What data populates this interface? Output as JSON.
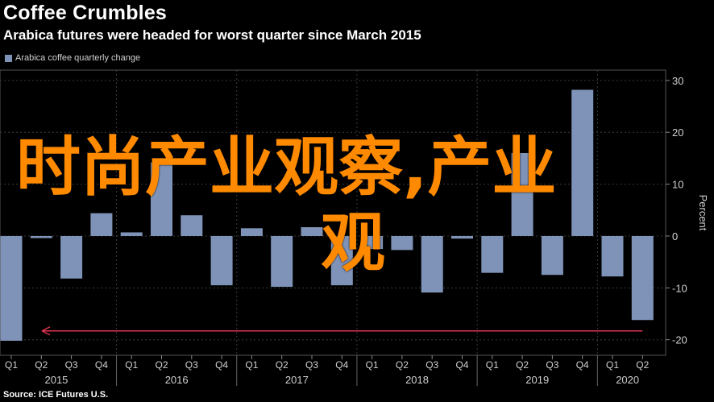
{
  "header": {
    "title": "Coffee Crumbles",
    "subtitle": "Arabica futures were headed for worst quarter since March 2015"
  },
  "legend": {
    "label": "Arabica coffee quarterly change"
  },
  "source": "Source: ICE Futures U.S.",
  "overlay": {
    "line1": "时尚产业观察,产业",
    "line2": "观"
  },
  "colors": {
    "bar": "#7f93b8",
    "arrow": "#e0334f",
    "grid": "#3a3a3a",
    "background": "#000000"
  },
  "chart_data": {
    "type": "bar",
    "categories": [
      "Q1 2015",
      "Q2 2015",
      "Q3 2015",
      "Q4 2015",
      "Q1 2016",
      "Q2 2016",
      "Q3 2016",
      "Q4 2016",
      "Q1 2017",
      "Q2 2017",
      "Q3 2017",
      "Q4 2017",
      "Q1 2018",
      "Q2 2018",
      "Q3 2018",
      "Q4 2018",
      "Q1 2019",
      "Q2 2019",
      "Q3 2019",
      "Q4 2019",
      "Q1 2020",
      "Q2 2020"
    ],
    "quarter_labels": [
      "Q1",
      "Q2",
      "Q3",
      "Q4",
      "Q1",
      "Q2",
      "Q3",
      "Q4",
      "Q1",
      "Q2",
      "Q3",
      "Q4",
      "Q1",
      "Q2",
      "Q3",
      "Q4",
      "Q1",
      "Q2",
      "Q3",
      "Q4",
      "Q1",
      "Q2"
    ],
    "year_labels": [
      "2015",
      "2016",
      "2017",
      "2018",
      "2019",
      "2020"
    ],
    "series": [
      {
        "name": "Arabica coffee quarterly change",
        "values": [
          -20.2,
          -0.4,
          -8.2,
          4.4,
          0.7,
          14.2,
          4.0,
          -9.5,
          1.5,
          -9.8,
          1.7,
          -9.5,
          -2.5,
          -2.7,
          -10.9,
          -0.5,
          -7.1,
          16.0,
          -7.5,
          28.2,
          -7.8,
          -16.2
        ]
      }
    ],
    "ylabel": "Percent",
    "ylim": [
      -23,
      32
    ],
    "yticks": [
      30,
      20,
      10,
      0,
      -10,
      -20
    ],
    "annotation": {
      "type": "arrow",
      "from": "Q2 2020",
      "to": "Q1 2015",
      "y": -18.3
    }
  }
}
